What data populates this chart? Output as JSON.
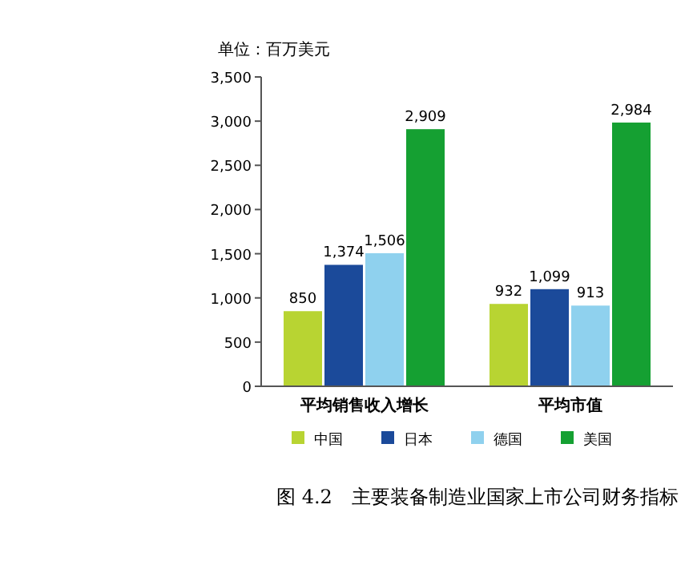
{
  "chart_data": {
    "type": "bar",
    "title": "图 4.2　主要装备制造业国家上市公司财务指标",
    "ylabel": "单位：百万美元",
    "categories": [
      "平均销售收入增长",
      "平均市值"
    ],
    "series": [
      {
        "name": "中国",
        "color": "#b8d432",
        "values": [
          850,
          932
        ],
        "value_labels": [
          "850",
          "932"
        ]
      },
      {
        "name": "日本",
        "color": "#1b4a9a",
        "values": [
          1374,
          1099
        ],
        "value_labels": [
          "1,374",
          "1,099"
        ]
      },
      {
        "name": "德国",
        "color": "#8fd1ee",
        "values": [
          1506,
          913
        ],
        "value_labels": [
          "1,506",
          "913"
        ]
      },
      {
        "name": "美国",
        "color": "#15a032",
        "values": [
          2909,
          2984
        ],
        "value_labels": [
          "2,909",
          "2,984"
        ]
      }
    ],
    "ylim": [
      0,
      3500
    ],
    "yticks": [
      {
        "value": 0,
        "label": "0"
      },
      {
        "value": 500,
        "label": "500"
      },
      {
        "value": 1000,
        "label": "1,000"
      },
      {
        "value": 1500,
        "label": "1,500"
      },
      {
        "value": 2000,
        "label": "2,000"
      },
      {
        "value": 2500,
        "label": "2,500"
      },
      {
        "value": 3000,
        "label": "3,000"
      },
      {
        "value": 3500,
        "label": "3,500"
      }
    ],
    "legend": "bottom"
  }
}
